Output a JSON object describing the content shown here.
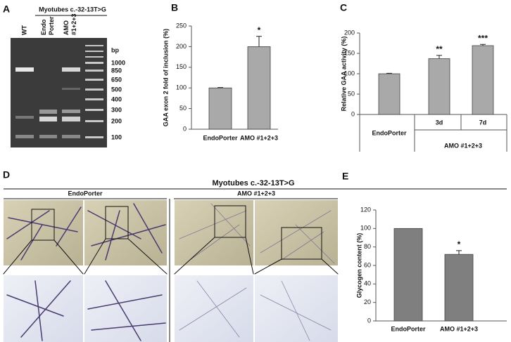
{
  "panel_labels": [
    "A",
    "B",
    "C",
    "D",
    "E"
  ],
  "gel": {
    "title": "Myotubes c.-32-13T>G",
    "lanes": [
      [
        "WT"
      ],
      [
        "Endo",
        "Porter"
      ],
      [
        "AMO",
        "#1+2+3"
      ]
    ],
    "unit": "bp",
    "ladder": [
      1000,
      850,
      650,
      500,
      400,
      300,
      200,
      100
    ]
  },
  "micrographs": {
    "title": "Myotubes c.-32-13T>G",
    "groups": [
      "EndoPorter",
      "AMO #1+2+3"
    ]
  },
  "chart_data": [
    {
      "type": "bar",
      "ylabel": "GAA exon 2 fold of inclusion (%)",
      "categories": [
        "EndoPorter",
        "AMO #1+2+3"
      ],
      "values": [
        100,
        200
      ],
      "errors": [
        1,
        25
      ],
      "annotations": [
        null,
        "*"
      ],
      "color": "#a9a9a9",
      "ylim": [
        0,
        250
      ],
      "yticks": [
        0,
        50,
        100,
        150,
        200,
        250
      ]
    },
    {
      "type": "bar",
      "ylabel": "Relative GAA activity (%)",
      "categories": [
        "EndoPorter",
        "3d",
        "7d"
      ],
      "group_label": "AMO #1+2+3",
      "values": [
        100,
        137,
        169
      ],
      "errors": [
        1,
        8,
        3
      ],
      "annotations": [
        null,
        "**",
        "***"
      ],
      "color": "#a9a9a9",
      "ylim": [
        0,
        200
      ],
      "yticks": [
        0,
        50,
        100,
        150,
        200
      ]
    },
    {
      "type": "bar",
      "ylabel": "Glycogen content (%)",
      "categories": [
        "EndoPorter",
        "AMO #1+2+3"
      ],
      "values": [
        100,
        72
      ],
      "errors": [
        null,
        4
      ],
      "annotations": [
        null,
        "*"
      ],
      "color": "#7f7f7f",
      "ylim": [
        0,
        120
      ],
      "yticks": [
        0,
        20,
        40,
        60,
        80,
        100,
        120
      ]
    }
  ]
}
